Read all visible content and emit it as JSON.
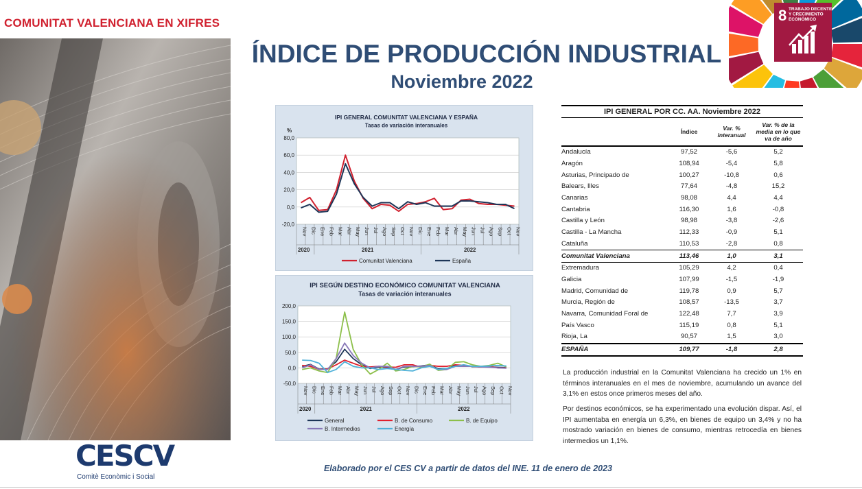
{
  "header_label": "COMUNITAT VALENCIANA EN XIFRES",
  "title": "ÍNDICE DE PRODUCCIÓN INDUSTRIAL",
  "subtitle": "Noviembre 2022",
  "sdg": {
    "number": "8",
    "text_lines": [
      "TRABAJO DECENTE",
      "Y CRECIMIENTO",
      "ECONÓMICO"
    ],
    "colors": [
      "#e5243b",
      "#dda63a",
      "#4c9f38",
      "#c5192d",
      "#ff3a21",
      "#26bde2",
      "#fcc30b",
      "#a21942",
      "#fd6925",
      "#dd1367",
      "#fd9d24",
      "#bf8b2e",
      "#3f7e44",
      "#0a97d9",
      "#56c02b",
      "#00689d",
      "#19486a"
    ]
  },
  "colors": {
    "cv": "#d0202e",
    "es": "#1d3557",
    "general": "#1d3557",
    "consumo": "#e0202e",
    "equipo": "#8cbf4a",
    "intermedios": "#8878b8",
    "energia": "#4fb1d9"
  },
  "chart_data": [
    {
      "type": "line",
      "title": "IPI GENERAL COMUNITAT VALENCIANA Y ESPAÑA",
      "subtitle": "Tasas de variación interanuales",
      "ylabel": "%",
      "ylim": [
        -20,
        80
      ],
      "yticks": [
        "80,0",
        "60,0",
        "40,0",
        "20,0",
        "0,0",
        "-20,0"
      ],
      "x": [
        "Nov",
        "Dic",
        "Ene",
        "Feb",
        "Mar",
        "Abr",
        "May",
        "Jun",
        "Jul",
        "Ago",
        "Sep",
        "Oct",
        "Nov",
        "Dic",
        "Ene",
        "Feb",
        "Mar",
        "Abr",
        "May",
        "Jun",
        "Jul",
        "Ago",
        "Sep",
        "Oct",
        "Nov"
      ],
      "years": [
        "2020",
        "2021",
        "2022"
      ],
      "series": [
        {
          "name": "Comunitat Valenciana",
          "color_key": "cv",
          "values": [
            5,
            11,
            -4,
            -3,
            20,
            60,
            30,
            10,
            -2,
            3,
            2,
            -5,
            3,
            4,
            6,
            10,
            -3,
            -2,
            8,
            9,
            4,
            3,
            3,
            2,
            1
          ]
        },
        {
          "name": "España",
          "color_key": "es",
          "values": [
            -1,
            3,
            -6,
            -5,
            15,
            50,
            27,
            11,
            1,
            5,
            5,
            -2,
            6,
            3,
            5,
            1,
            1,
            1,
            7,
            7,
            6,
            5,
            3,
            3,
            -1.8
          ]
        }
      ]
    },
    {
      "type": "line",
      "title": "IPI SEGÚN DESTINO ECONÓMICO COMUNITAT VALENCIANA",
      "subtitle": "Tasas de variación interanuales",
      "ylim": [
        -50,
        200
      ],
      "yticks": [
        "200,0",
        "150,0",
        "100,0",
        "50,0",
        "0,0",
        "-50,0"
      ],
      "x": [
        "Nov",
        "Dic",
        "Ene",
        "Feb",
        "Mar",
        "Abr",
        "May",
        "Jun",
        "Jul",
        "Ago",
        "Sep",
        "Oct",
        "Nov",
        "Dic",
        "Ene",
        "Feb",
        "Mar",
        "Abr",
        "May",
        "Jun",
        "Jul",
        "Ago",
        "Sep",
        "Oct",
        "Nov"
      ],
      "years": [
        "2020",
        "2021",
        "2022"
      ],
      "series": [
        {
          "name": "General",
          "color_key": "general",
          "values": [
            5,
            11,
            -4,
            -3,
            20,
            60,
            30,
            10,
            -2,
            3,
            2,
            -5,
            3,
            4,
            6,
            10,
            -3,
            -2,
            8,
            9,
            4,
            3,
            3,
            2,
            1
          ]
        },
        {
          "name": "B. de Consumo",
          "color_key": "consumo",
          "values": [
            8,
            5,
            -5,
            -3,
            10,
            25,
            15,
            5,
            3,
            5,
            3,
            2,
            10,
            10,
            2,
            8,
            5,
            5,
            10,
            8,
            5,
            3,
            5,
            0,
            0
          ]
        },
        {
          "name": "B. de Equipo",
          "color_key": "equipo",
          "values": [
            -5,
            0,
            -10,
            -15,
            30,
            180,
            60,
            10,
            -20,
            -5,
            15,
            -10,
            -5,
            5,
            3,
            12,
            -8,
            -5,
            18,
            20,
            10,
            5,
            8,
            15,
            3.4
          ]
        },
        {
          "name": "B. Intermedios",
          "color_key": "intermedios",
          "values": [
            0,
            10,
            -5,
            -5,
            30,
            80,
            40,
            15,
            0,
            5,
            5,
            -5,
            5,
            5,
            5,
            8,
            -5,
            -5,
            5,
            5,
            5,
            3,
            2,
            0,
            -1.1
          ]
        },
        {
          "name": "Energía",
          "color_key": "energia",
          "values": [
            25,
            24,
            15,
            -15,
            -5,
            20,
            5,
            0,
            0,
            -5,
            -2,
            -5,
            -8,
            -10,
            0,
            5,
            -5,
            -2,
            5,
            10,
            5,
            5,
            6,
            8,
            6.3
          ]
        }
      ]
    },
    {
      "type": "table",
      "title": "IPI GENERAL POR CC. AA. Noviembre 2022",
      "columns": [
        "",
        "Índice",
        "Var. % interanual",
        "Var. % de la media en lo que va de año"
      ],
      "rows": [
        [
          "Andalucía",
          "97,52",
          "-5,6",
          "5,2"
        ],
        [
          "Aragón",
          "108,94",
          "-5,4",
          "5,8"
        ],
        [
          "Asturias, Principado de",
          "100,27",
          "-10,8",
          "0,6"
        ],
        [
          "Balears, Illes",
          "77,64",
          "-4,8",
          "15,2"
        ],
        [
          "Canarias",
          "98,08",
          "4,4",
          "4,4"
        ],
        [
          "Cantabria",
          "116,30",
          "1,6",
          "-0,8"
        ],
        [
          "Castilla y León",
          "98,98",
          "-3,8",
          "-2,6"
        ],
        [
          "Castilla - La Mancha",
          "112,33",
          "-0,9",
          "5,1"
        ],
        [
          "Cataluña",
          "110,53",
          "-2,8",
          "0,8"
        ],
        [
          "Comunitat Valenciana",
          "113,46",
          "1,0",
          "3,1"
        ],
        [
          "Extremadura",
          "105,29",
          "4,2",
          "0,4"
        ],
        [
          "Galicia",
          "107,99",
          "-1,5",
          "-1,9"
        ],
        [
          "Madrid, Comunidad de",
          "119,78",
          "0,9",
          "5,7"
        ],
        [
          "Murcia, Región de",
          "108,57",
          "-13,5",
          "3,7"
        ],
        [
          "Navarra, Comunidad Foral de",
          "122,48",
          "7,7",
          "3,9"
        ],
        [
          "País Vasco",
          "115,19",
          "0,8",
          "5,1"
        ],
        [
          "Rioja, La",
          "90,57",
          "1,5",
          "3,0"
        ],
        [
          "ESPAÑA",
          "109,77",
          "-1,8",
          "2,8"
        ]
      ]
    }
  ],
  "paragraph1": "La producción industrial en la Comunitat Valenciana ha crecido un 1% en términos interanuales en el mes de noviembre, acumulando un avance del 3,1% en estos once primeros meses del año.",
  "paragraph2": "Por destinos económicos, se ha experimentado una evolución dispar. Así, el IPI aumentaba en energía un 6,3%, en bienes de equipo un 3,4% y no ha mostrado variación en bienes de consumo, mientras retrocedía en bienes intermedios un 1,1%.",
  "footer_note": "Elaborado por el CES CV a partir de datos del INE. 11 de enero de 2023",
  "logo": {
    "name": "CESCV",
    "tagline": "Comitè Econòmic i Social"
  }
}
